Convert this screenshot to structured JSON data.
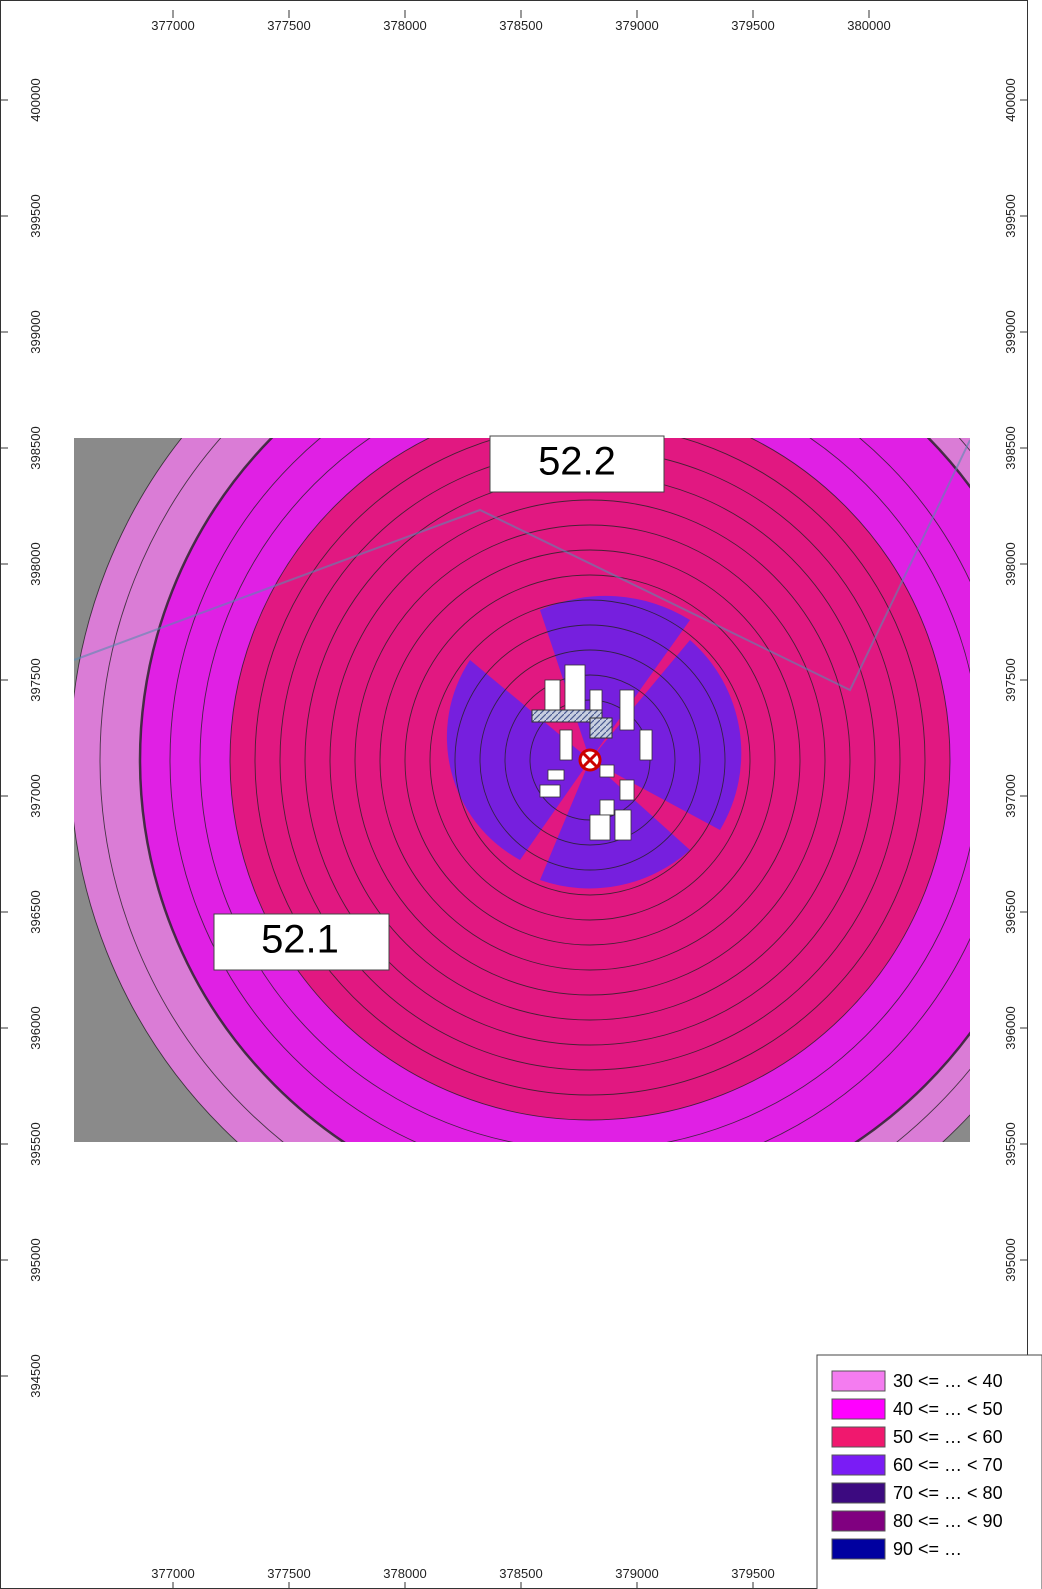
{
  "axes": {
    "x_ticks_top": [
      377000,
      377500,
      378000,
      378500,
      379000,
      379500,
      380000
    ],
    "x_ticks_bottom": [
      377000,
      377500,
      378000,
      378500,
      379000,
      379500
    ],
    "y_ticks_left": [
      400000,
      399500,
      399000,
      398500,
      398000,
      397500,
      397000,
      396500,
      396000,
      395500,
      395000,
      394500
    ],
    "y_ticks_right": [
      400000,
      399500,
      399000,
      398500,
      398000,
      397500,
      397000,
      396500,
      396000,
      395500,
      395000
    ]
  },
  "map_labels": [
    52.2,
    52.1
  ],
  "legend": [
    {
      "label": "30 <= … < 40",
      "color": "#f47cf0"
    },
    {
      "label": "40 <= … < 50",
      "color": "#ff00ff"
    },
    {
      "label": "50 <= … < 60",
      "color": "#f0186e"
    },
    {
      "label": "60 <= … < 70",
      "color": "#7a1cf5"
    },
    {
      "label": "70 <= … < 80",
      "color": "#3c0a80"
    },
    {
      "label": "80 <= … < 90",
      "color": "#800080"
    },
    {
      "label": "90 <= …",
      "color": "#0000a0"
    }
  ]
}
